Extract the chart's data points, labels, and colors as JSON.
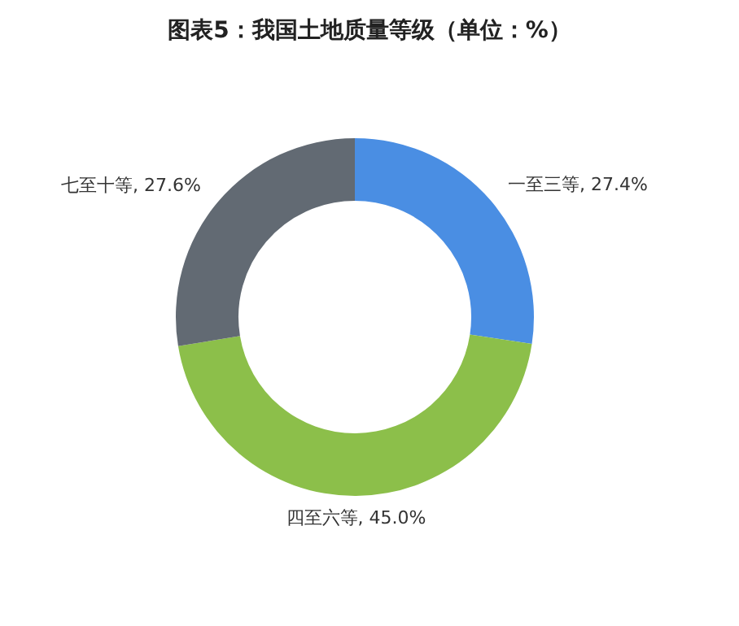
{
  "chart_data": {
    "type": "donut",
    "title": "图表5：我国土地质量等级（单位：%）",
    "categories": [
      "一至三等",
      "四至六等",
      "七至十等"
    ],
    "values": [
      27.4,
      45.0,
      27.6
    ],
    "value_labels": [
      "27.4%",
      "45.0%",
      "27.6%"
    ],
    "colors": [
      "#4a8ee3",
      "#8cbf4a",
      "#626a73"
    ],
    "legend": false
  }
}
